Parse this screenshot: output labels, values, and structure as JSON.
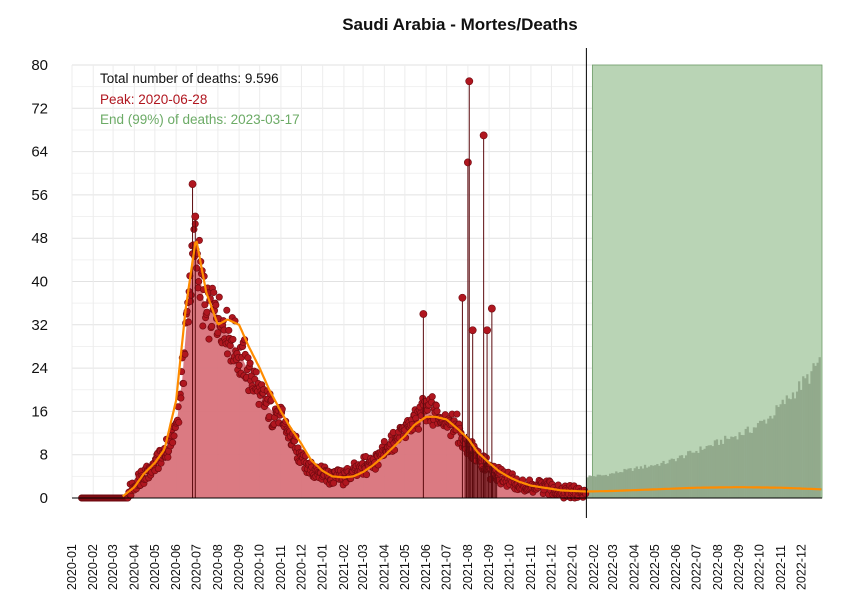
{
  "chart_data": {
    "type": "area",
    "title": "Saudi Arabia - Mortes/Deaths",
    "xlabel": "",
    "ylabel": "",
    "x_range": [
      "2020-01-01",
      "2022-12-31"
    ],
    "ylim": [
      0,
      80
    ],
    "y_ticks": [
      0,
      8,
      16,
      24,
      32,
      40,
      48,
      56,
      64,
      72,
      80
    ],
    "x_tick_labels": [
      "2020-01",
      "2020-02",
      "2020-03",
      "2020-04",
      "2020-05",
      "2020-06",
      "2020-07",
      "2020-08",
      "2020-09",
      "2020-10",
      "2020-11",
      "2020-12",
      "2021-01",
      "2021-02",
      "2021-03",
      "2021-04",
      "2021-05",
      "2021-06",
      "2021-07",
      "2021-08",
      "2021-09",
      "2021-10",
      "2021-11",
      "2021-12",
      "2022-01",
      "2022-02",
      "2022-03",
      "2022-04",
      "2022-05",
      "2022-06",
      "2022-07",
      "2022-08",
      "2022-09",
      "2022-10",
      "2022-11",
      "2022-12"
    ],
    "grid": true,
    "forecast_start": "2022-01-21",
    "end_date": "2022-12-31",
    "colors": {
      "observed_fill": "#d9737b",
      "observed_points": "#b0161f",
      "observed_stems": "#5c0a0e",
      "smooth_line": "#ff8c00",
      "forecast_band": "#b9d4b5",
      "forecast_bars": "#8fa88a",
      "annotation_total": "#111111",
      "annotation_peak": "#b0161f",
      "annotation_end": "#6cab66"
    },
    "annotations": {
      "total": "Total number of deaths: 9.596",
      "peak": "Peak: 2020-06-28",
      "end": "End (99%) of deaths: 2023-03-17"
    },
    "observed_series": {
      "name": "",
      "x": [
        "2020-03-24",
        "2020-04-05",
        "2020-04-20",
        "2020-05-05",
        "2020-05-20",
        "2020-06-01",
        "2020-06-10",
        "2020-06-20",
        "2020-06-28",
        "2020-07-05",
        "2020-07-15",
        "2020-07-25",
        "2020-08-05",
        "2020-08-15",
        "2020-08-25",
        "2020-09-05",
        "2020-09-20",
        "2020-10-05",
        "2020-10-20",
        "2020-11-05",
        "2020-11-20",
        "2020-12-05",
        "2020-12-20",
        "2021-01-05",
        "2021-01-20",
        "2021-02-05",
        "2021-02-20",
        "2021-03-05",
        "2021-03-20",
        "2021-04-05",
        "2021-04-20",
        "2021-05-05",
        "2021-05-20",
        "2021-06-01",
        "2021-06-10",
        "2021-06-20",
        "2021-07-01",
        "2021-07-15",
        "2021-07-25",
        "2021-08-05",
        "2021-08-15",
        "2021-08-25",
        "2021-09-05",
        "2021-09-20",
        "2021-10-05",
        "2021-10-20",
        "2021-11-05",
        "2021-11-20",
        "2021-12-05",
        "2021-12-20",
        "2022-01-05",
        "2022-01-20"
      ],
      "values": [
        1,
        3,
        5,
        7,
        9,
        13,
        22,
        38,
        47,
        42,
        33,
        35,
        33,
        31,
        28,
        26,
        22,
        18,
        16,
        14,
        10,
        7,
        5,
        4,
        4,
        4,
        5,
        6,
        7,
        9,
        11,
        13,
        15,
        16,
        16,
        15,
        14,
        13,
        11,
        9,
        7,
        6,
        5,
        4,
        3,
        2,
        2,
        2,
        2,
        1,
        1,
        1
      ]
    },
    "observed_spikes": {
      "x": [
        "2020-06-25",
        "2020-06-29",
        "2021-05-28",
        "2021-07-24",
        "2021-08-01",
        "2021-08-03",
        "2021-08-08",
        "2021-08-24",
        "2021-08-29",
        "2021-09-05"
      ],
      "values": [
        58,
        52,
        34,
        37,
        62,
        77,
        31,
        67,
        31,
        35
      ]
    },
    "smooth_series": {
      "x": [
        "2020-03-15",
        "2020-04-01",
        "2020-04-15",
        "2020-05-01",
        "2020-05-15",
        "2020-06-01",
        "2020-06-15",
        "2020-06-30",
        "2020-07-15",
        "2020-08-01",
        "2020-08-15",
        "2020-09-01",
        "2020-09-15",
        "2020-10-01",
        "2020-10-15",
        "2020-11-01",
        "2020-11-15",
        "2020-12-01",
        "2020-12-15",
        "2021-01-01",
        "2021-01-15",
        "2021-02-01",
        "2021-02-15",
        "2021-03-01",
        "2021-03-15",
        "2021-04-01",
        "2021-04-15",
        "2021-05-01",
        "2021-05-15",
        "2021-06-01",
        "2021-06-15",
        "2021-07-01",
        "2021-07-15",
        "2021-08-01",
        "2021-08-15",
        "2021-09-01",
        "2021-09-15",
        "2021-10-01",
        "2021-10-15",
        "2021-11-01",
        "2021-11-15",
        "2021-12-01",
        "2021-12-15",
        "2022-01-01",
        "2022-01-21",
        "2022-03-01",
        "2022-05-01",
        "2022-07-01",
        "2022-09-01",
        "2022-11-01",
        "2022-12-31"
      ],
      "values": [
        0.3,
        2,
        4.5,
        6.5,
        9,
        18,
        35,
        48,
        38,
        32,
        33,
        32,
        28,
        24,
        20,
        16,
        13,
        10,
        7,
        5,
        4,
        3.8,
        4,
        4.8,
        6,
        7.8,
        9.5,
        11.5,
        13.5,
        15,
        15,
        14.5,
        13,
        11,
        8.5,
        6.5,
        5,
        3.8,
        3,
        2.3,
        2,
        1.7,
        1.4,
        1.3,
        1.2,
        1.3,
        1.6,
        1.9,
        2,
        1.9,
        1.6
      ]
    },
    "forecast_bars": {
      "x": [
        "2022-01-21",
        "2022-02-15",
        "2022-03-15",
        "2022-04-15",
        "2022-05-15",
        "2022-06-15",
        "2022-07-15",
        "2022-08-15",
        "2022-09-15",
        "2022-10-15",
        "2022-11-15",
        "2022-12-15",
        "2022-12-28"
      ],
      "values": [
        4,
        4.2,
        5,
        5.8,
        6.5,
        8,
        9.5,
        11,
        12.5,
        15,
        19,
        23,
        26
      ]
    }
  }
}
